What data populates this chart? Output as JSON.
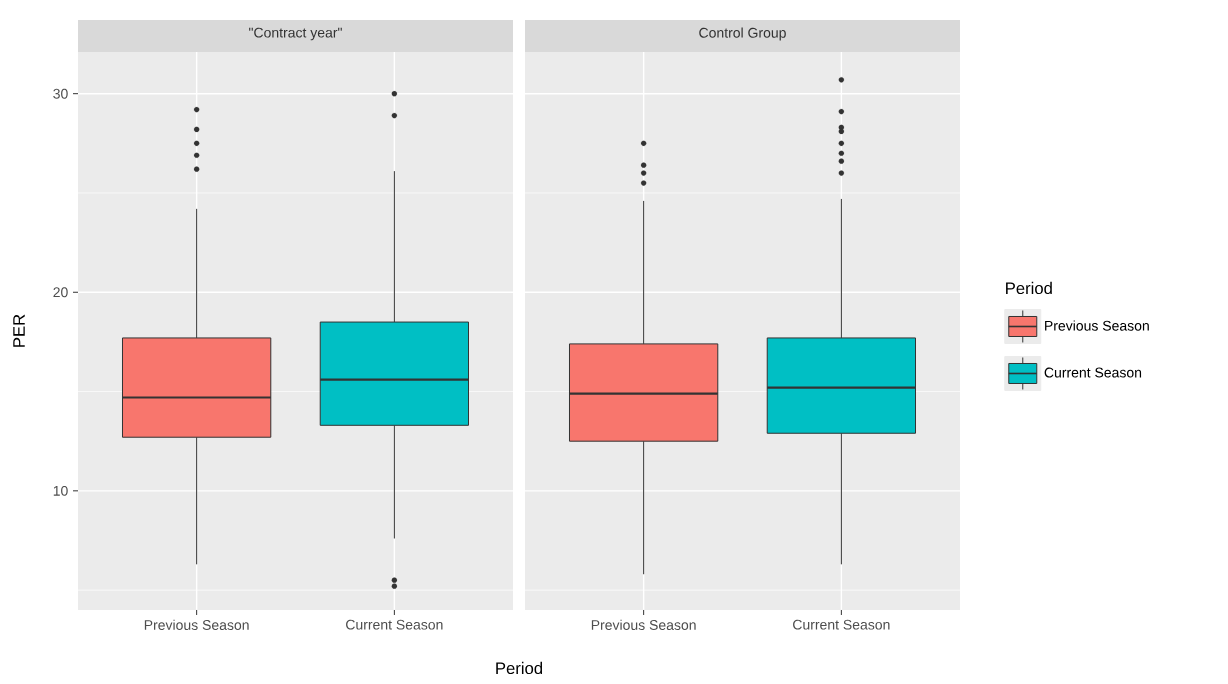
{
  "chart_data": [
    {
      "type": "box",
      "title": "\"Contract year\"",
      "xlabel": "Period",
      "ylabel": "PER",
      "categories": [
        "Previous Season",
        "Current Season"
      ],
      "ylim": [
        4,
        32.1
      ],
      "yticks": [
        10,
        20,
        30
      ],
      "grid": true,
      "series": [
        {
          "color": "#f8766d",
          "boxes": [
            {
              "low": 6.3,
              "q1": 12.7,
              "median": 14.7,
              "q3": 17.7,
              "high": 24.2,
              "outliers": [
                29.2,
                28.2,
                27.5,
                26.9,
                26.2
              ]
            },
            null
          ]
        },
        {
          "color": "#00bfc4",
          "boxes": [
            null,
            {
              "low": 7.6,
              "q1": 13.3,
              "median": 15.6,
              "q3": 18.5,
              "high": 26.1,
              "outliers": [
                30.0,
                28.9,
                5.5,
                5.2
              ]
            }
          ]
        }
      ]
    },
    {
      "type": "box",
      "title": "Control Group",
      "legend_title": "Period",
      "legend": "right",
      "tick_labels": "x",
      "categories": [
        "Previous Season",
        "Current Season"
      ],
      "ylim": [
        4,
        32.1
      ],
      "yticks": [
        10,
        20,
        30
      ],
      "grid": true,
      "series": [
        {
          "name": "Previous Season",
          "color": "#f8766d",
          "boxes": [
            {
              "low": 5.8,
              "q1": 12.5,
              "median": 14.9,
              "q3": 17.4,
              "high": 24.6,
              "outliers": [
                27.5,
                26.4,
                26.0,
                25.5
              ]
            },
            null
          ]
        },
        {
          "name": "Current Season",
          "color": "#00bfc4",
          "boxes": [
            null,
            {
              "low": 6.3,
              "q1": 12.9,
              "median": 15.2,
              "q3": 17.7,
              "high": 24.7,
              "outliers": [
                30.7,
                29.1,
                28.3,
                28.1,
                27.5,
                27.0,
                26.6,
                26.0
              ]
            }
          ]
        }
      ]
    }
  ]
}
